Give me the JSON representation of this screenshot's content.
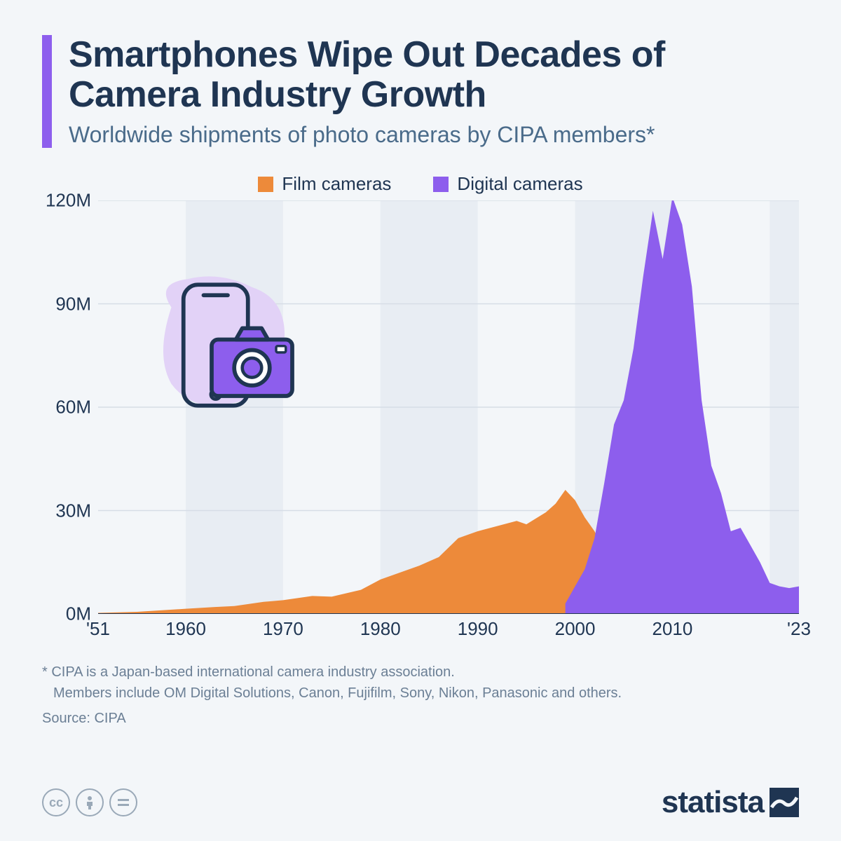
{
  "header": {
    "accent_color": "#8d5eed",
    "title": "Smartphones Wipe Out Decades of Camera Industry Growth",
    "title_fontsize": 52,
    "title_color": "#1f3552",
    "subtitle": "Worldwide shipments of photo cameras by CIPA members*",
    "subtitle_fontsize": 32,
    "subtitle_color": "#4a6b8a"
  },
  "legend": {
    "fontsize": 26,
    "items": [
      {
        "label": "Film cameras",
        "color": "#ed8a3a"
      },
      {
        "label": "Digital cameras",
        "color": "#8d5eed"
      }
    ]
  },
  "chart": {
    "type": "area",
    "background": "#f3f6f9",
    "band_color": "#e8edf3",
    "axis_color": "#1f3552",
    "grid_color": "#d6dde6",
    "x": {
      "min": 1951,
      "max": 2023,
      "ticks": [
        1951,
        1960,
        1970,
        1980,
        1990,
        2000,
        2010,
        2023
      ],
      "tick_labels": [
        "'51",
        "1960",
        "1970",
        "1980",
        "1990",
        "2000",
        "2010",
        "'23"
      ],
      "label_fontsize": 26
    },
    "y": {
      "min": 0,
      "max": 120,
      "unit": "M",
      "ticks": [
        0,
        30,
        60,
        90,
        120
      ],
      "tick_labels": [
        "0M",
        "30M",
        "60M",
        "90M",
        "120M"
      ],
      "label_fontsize": 26
    },
    "series": {
      "film": {
        "color": "#ed8a3a",
        "years": [
          1951,
          1955,
          1960,
          1963,
          1965,
          1968,
          1970,
          1973,
          1975,
          1978,
          1980,
          1982,
          1984,
          1986,
          1988,
          1990,
          1992,
          1994,
          1995,
          1997,
          1998,
          1999,
          2000,
          2001,
          2002,
          2003,
          2004,
          2005,
          2006,
          2007,
          2008
        ],
        "values": [
          0.3,
          0.6,
          1.5,
          2.0,
          2.3,
          3.5,
          4.0,
          5.2,
          5.0,
          7.0,
          10.0,
          12.0,
          14.0,
          16.5,
          22.0,
          24.0,
          25.5,
          27.0,
          26.0,
          29.5,
          32.0,
          36.0,
          33.0,
          28.0,
          24.0,
          18.0,
          12.0,
          7.0,
          3.0,
          1.0,
          0.0
        ]
      },
      "digital": {
        "color": "#8d5eed",
        "years": [
          1999,
          2000,
          2001,
          2002,
          2003,
          2004,
          2005,
          2006,
          2007,
          2008,
          2009,
          2010,
          2011,
          2012,
          2013,
          2014,
          2015,
          2016,
          2017,
          2018,
          2019,
          2020,
          2021,
          2022,
          2023
        ],
        "values": [
          3.0,
          8.0,
          13.0,
          22.0,
          38.0,
          55.0,
          62.0,
          77.0,
          98.0,
          117.0,
          103.0,
          121.0,
          113.0,
          95.0,
          62.0,
          43.0,
          35.0,
          24.0,
          25.0,
          20.0,
          15.0,
          9.0,
          8.0,
          7.5,
          8.0
        ]
      }
    }
  },
  "icon": {
    "blob_color": "#e2d2f7",
    "phone_stroke": "#1f3552",
    "camera_fill": "#8d5eed",
    "camera_stroke": "#1f3552"
  },
  "footnote": {
    "line1": "* CIPA is a Japan-based international camera industry association.",
    "line2": "Members include OM Digital Solutions, Canon, Fujifilm, Sony, Nikon, Panasonic and others.",
    "fontsize": 20
  },
  "source": {
    "label": "Source: CIPA",
    "fontsize": 20
  },
  "footer": {
    "cc_color": "#9aa9b8",
    "brand": "statista",
    "brand_fontsize": 44,
    "brand_color": "#1f3552"
  }
}
